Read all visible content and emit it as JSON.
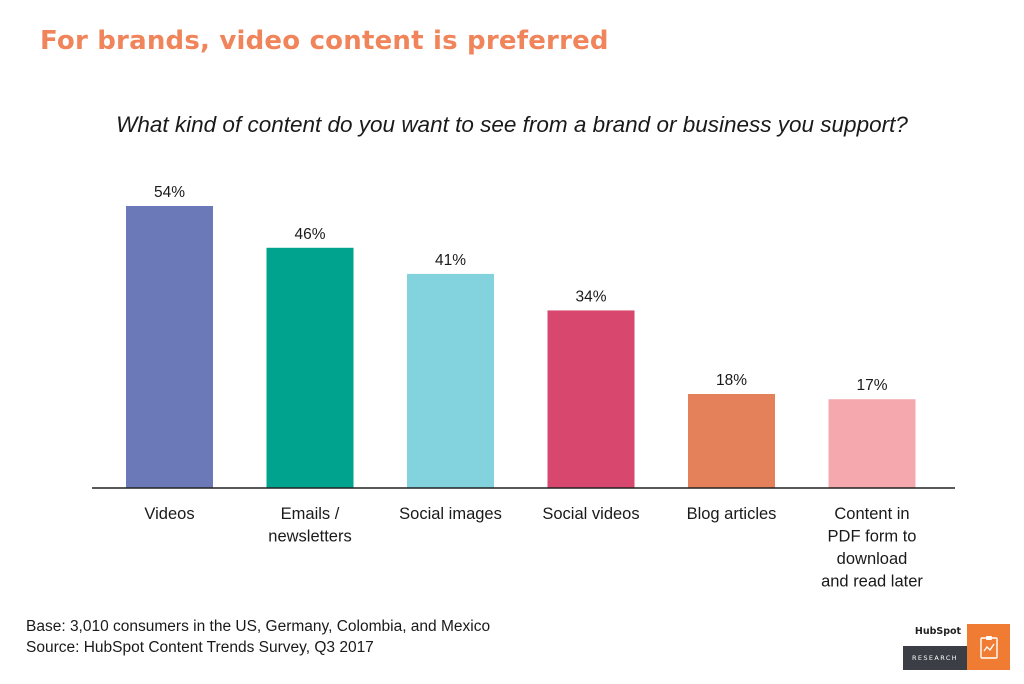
{
  "headline": "For brands, video content is preferred",
  "chart_data": {
    "type": "bar",
    "title": "What kind of content do you want to see from a brand or business you support?",
    "categories": [
      [
        "Videos"
      ],
      [
        "Emails /",
        "newsletters"
      ],
      [
        "Social images"
      ],
      [
        "Social videos"
      ],
      [
        "Blog articles"
      ],
      [
        "Content in",
        "PDF form to",
        "download",
        "and read later"
      ]
    ],
    "values": [
      54,
      46,
      41,
      34,
      18,
      17
    ],
    "data_labels": [
      "54%",
      "46%",
      "41%",
      "34%",
      "18%",
      "17%"
    ],
    "colors": [
      "#6b79b8",
      "#00a38d",
      "#82d3dd",
      "#d8476d",
      "#e4805a",
      "#f5a9ae"
    ],
    "ylim": [
      0,
      54
    ],
    "grid": false,
    "legend": "none"
  },
  "footer": {
    "base": "Base: 3,010 consumers in the US, Germany, Colombia, and Mexico",
    "source": "Source: HubSpot Content Trends Survey, Q3 2017"
  },
  "logo": {
    "name": "HubSpot",
    "label": "RESEARCH",
    "icon": "clipboard-chart-icon"
  }
}
